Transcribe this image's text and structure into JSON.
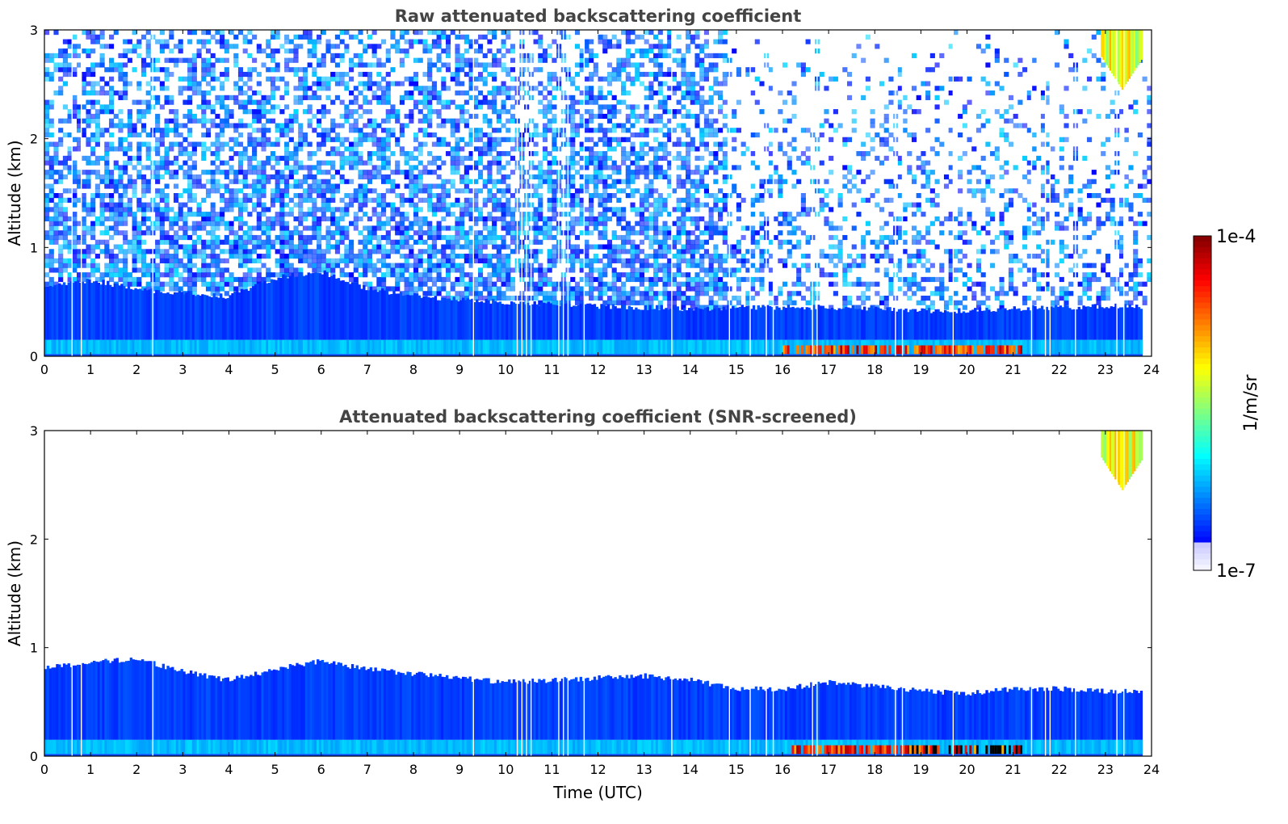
{
  "chart_data": [
    {
      "type": "heatmap",
      "title": "Raw attenuated backscattering coefficient",
      "xlabel": "",
      "ylabel": "Altitude (km)",
      "xlim": [
        0,
        24
      ],
      "ylim": [
        0,
        3
      ],
      "x_ticks": [
        "0",
        "1",
        "2",
        "3",
        "4",
        "5",
        "6",
        "7",
        "8",
        "9",
        "10",
        "11",
        "12",
        "13",
        "14",
        "15",
        "16",
        "17",
        "18",
        "19",
        "20",
        "21",
        "22",
        "23",
        "24"
      ],
      "y_ticks": [
        "0",
        "1",
        "2",
        "3"
      ],
      "features": {
        "boundary_layer_top_km": [
          [
            0,
            0.65
          ],
          [
            1,
            0.7
          ],
          [
            2,
            0.62
          ],
          [
            3,
            0.58
          ],
          [
            4,
            0.55
          ],
          [
            5,
            0.72
          ],
          [
            6,
            0.78
          ],
          [
            7,
            0.62
          ],
          [
            8,
            0.56
          ],
          [
            9,
            0.52
          ],
          [
            10,
            0.5
          ],
          [
            11,
            0.48
          ],
          [
            12,
            0.46
          ],
          [
            13,
            0.45
          ],
          [
            14,
            0.44
          ],
          [
            15,
            0.45
          ],
          [
            16,
            0.45
          ],
          [
            17,
            0.45
          ],
          [
            18,
            0.44
          ],
          [
            19,
            0.42
          ],
          [
            20,
            0.42
          ],
          [
            21,
            0.44
          ],
          [
            22,
            0.45
          ],
          [
            23,
            0.46
          ],
          [
            23.8,
            0.46
          ]
        ],
        "surface_layer_top_km": 0.08,
        "high_backscatter_near_surface": {
          "x_range": [
            16,
            21.2
          ],
          "altitude_km": [
            0.02,
            0.1
          ]
        },
        "cloud": {
          "x_range": [
            22.9,
            23.8
          ],
          "altitude_km": [
            2.45,
            3.0
          ]
        },
        "data_gaps_hours": [
          0.6,
          0.8,
          2.35,
          9.3,
          10.25,
          10.35,
          10.45,
          10.55,
          11.15,
          11.25,
          11.35,
          11.7,
          13.6,
          14.85,
          15.3,
          15.65,
          15.8,
          16.65,
          16.75,
          18.45,
          18.6,
          19.7,
          21.4,
          21.7,
          21.8,
          22.35,
          23.25,
          23.4
        ]
      },
      "noisy_background": true
    },
    {
      "type": "heatmap",
      "title": "Attenuated backscattering coefficient (SNR-screened)",
      "xlabel": "Time (UTC)",
      "ylabel": "Altitude (km)",
      "xlim": [
        0,
        24
      ],
      "ylim": [
        0,
        3
      ],
      "x_ticks": [
        "0",
        "1",
        "2",
        "3",
        "4",
        "5",
        "6",
        "7",
        "8",
        "9",
        "10",
        "11",
        "12",
        "13",
        "14",
        "15",
        "16",
        "17",
        "18",
        "19",
        "20",
        "21",
        "22",
        "23",
        "24"
      ],
      "y_ticks": [
        "0",
        "1",
        "2",
        "3"
      ],
      "features": {
        "boundary_layer_top_km": [
          [
            0,
            0.82
          ],
          [
            1,
            0.86
          ],
          [
            2,
            0.9
          ],
          [
            3,
            0.78
          ],
          [
            4,
            0.7
          ],
          [
            5,
            0.8
          ],
          [
            6,
            0.88
          ],
          [
            7,
            0.8
          ],
          [
            8,
            0.76
          ],
          [
            9,
            0.72
          ],
          [
            10,
            0.68
          ],
          [
            11,
            0.7
          ],
          [
            12,
            0.72
          ],
          [
            13,
            0.74
          ],
          [
            14,
            0.7
          ],
          [
            15,
            0.62
          ],
          [
            16,
            0.62
          ],
          [
            17,
            0.68
          ],
          [
            18,
            0.64
          ],
          [
            19,
            0.6
          ],
          [
            20,
            0.58
          ],
          [
            21,
            0.62
          ],
          [
            22,
            0.62
          ],
          [
            23,
            0.6
          ],
          [
            23.8,
            0.6
          ]
        ],
        "surface_layer_top_km": 0.08,
        "high_backscatter_near_surface": {
          "x_range": [
            16.2,
            21.2
          ],
          "altitude_km": [
            0.02,
            0.1
          ]
        },
        "cloud": {
          "x_range": [
            22.9,
            23.8
          ],
          "altitude_km": [
            2.45,
            3.0
          ]
        },
        "data_gaps_hours": [
          0.6,
          0.8,
          2.35,
          9.3,
          10.25,
          10.35,
          10.45,
          10.55,
          11.15,
          11.25,
          11.35,
          11.7,
          13.6,
          14.85,
          15.3,
          15.65,
          15.8,
          16.65,
          16.75,
          18.45,
          18.6,
          19.7,
          21.4,
          21.7,
          21.8,
          22.35,
          23.25,
          23.4
        ]
      },
      "noisy_background": false
    }
  ],
  "colorbar": {
    "max_label": "1e-4",
    "min_label": "1e-7",
    "unit_label": "1/m/sr",
    "scale": "log",
    "colormap": "jet"
  }
}
